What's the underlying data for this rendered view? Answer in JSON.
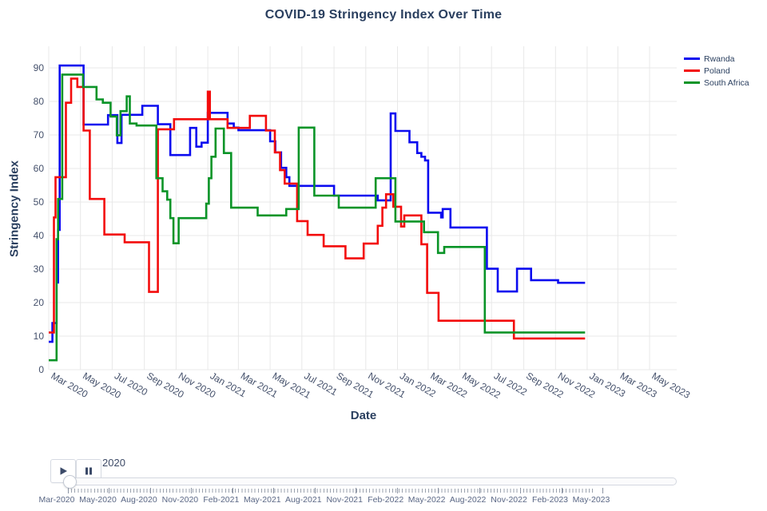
{
  "chart_data": {
    "type": "line",
    "line_shape": "step-after",
    "title": "COVID-19 Stringency Index Over Time",
    "xlabel": "Date",
    "ylabel": "Stringency Index",
    "ylim": [
      0,
      95
    ],
    "grid": true,
    "legend_position": "top-right",
    "y_ticks": [
      0,
      10,
      20,
      30,
      40,
      50,
      60,
      70,
      80,
      90
    ],
    "x_ticks": [
      {
        "date": "2020-03-01",
        "label": "Mar 2020"
      },
      {
        "date": "2020-05-01",
        "label": "May 2020"
      },
      {
        "date": "2020-07-01",
        "label": "Jul 2020"
      },
      {
        "date": "2020-09-01",
        "label": "Sep 2020"
      },
      {
        "date": "2020-11-01",
        "label": "Nov 2020"
      },
      {
        "date": "2021-01-01",
        "label": "Jan 2021"
      },
      {
        "date": "2021-03-01",
        "label": "Mar 2021"
      },
      {
        "date": "2021-05-01",
        "label": "May 2021"
      },
      {
        "date": "2021-07-01",
        "label": "Jul 2021"
      },
      {
        "date": "2021-09-01",
        "label": "Sep 2021"
      },
      {
        "date": "2021-11-01",
        "label": "Nov 2021"
      },
      {
        "date": "2022-01-01",
        "label": "Jan 2022"
      },
      {
        "date": "2022-03-01",
        "label": "Mar 2022"
      },
      {
        "date": "2022-05-01",
        "label": "May 2022"
      },
      {
        "date": "2022-07-01",
        "label": "Jul 2022"
      },
      {
        "date": "2022-09-01",
        "label": "Sep 2022"
      },
      {
        "date": "2022-11-01",
        "label": "Nov 2022"
      },
      {
        "date": "2023-01-01",
        "label": "Jan 2023"
      },
      {
        "date": "2023-03-01",
        "label": "Mar 2023"
      },
      {
        "date": "2023-05-01",
        "label": "May 2023"
      }
    ],
    "x_end_of_data": "2022-12-28",
    "series": [
      {
        "name": "Rwanda",
        "color": "#0b0bef",
        "points": [
          [
            "2020-03-01",
            8.3
          ],
          [
            "2020-03-08",
            13.9
          ],
          [
            "2020-03-16",
            26.0
          ],
          [
            "2020-03-19",
            41.7
          ],
          [
            "2020-03-22",
            90.7
          ],
          [
            "2020-05-07",
            73.1
          ],
          [
            "2020-06-23",
            75.9
          ],
          [
            "2020-07-11",
            67.6
          ],
          [
            "2020-07-19",
            76.0
          ],
          [
            "2020-08-28",
            78.7
          ],
          [
            "2020-09-27",
            73.2
          ],
          [
            "2020-10-21",
            64.0
          ],
          [
            "2020-11-28",
            72.1
          ],
          [
            "2020-12-10",
            66.5
          ],
          [
            "2020-12-20",
            67.7
          ],
          [
            "2021-01-01",
            76.6
          ],
          [
            "2021-02-08",
            73.4
          ],
          [
            "2021-02-20",
            72.2
          ],
          [
            "2021-03-01",
            71.4
          ],
          [
            "2021-05-01",
            68.1
          ],
          [
            "2021-05-11",
            64.8
          ],
          [
            "2021-05-22",
            60.2
          ],
          [
            "2021-06-01",
            57.4
          ],
          [
            "2021-06-07",
            54.8
          ],
          [
            "2021-09-01",
            51.9
          ],
          [
            "2021-11-24",
            50.5
          ],
          [
            "2021-12-19",
            76.4
          ],
          [
            "2021-12-28",
            71.2
          ],
          [
            "2022-01-24",
            67.8
          ],
          [
            "2022-02-08",
            64.6
          ],
          [
            "2022-02-16",
            63.5
          ],
          [
            "2022-02-23",
            62.4
          ],
          [
            "2022-03-01",
            46.8
          ],
          [
            "2022-03-26",
            45.4
          ],
          [
            "2022-03-29",
            47.9
          ],
          [
            "2022-04-13",
            42.4
          ],
          [
            "2022-06-22",
            30.1
          ],
          [
            "2022-07-13",
            23.3
          ],
          [
            "2022-08-19",
            30.1
          ],
          [
            "2022-09-15",
            26.7
          ],
          [
            "2022-11-06",
            25.9
          ]
        ]
      },
      {
        "name": "Poland",
        "color": "#f30c0c",
        "points": [
          [
            "2020-03-01",
            11.1
          ],
          [
            "2020-03-11",
            45.4
          ],
          [
            "2020-03-14",
            57.4
          ],
          [
            "2020-04-03",
            79.6
          ],
          [
            "2020-04-13",
            86.8
          ],
          [
            "2020-04-25",
            84.3
          ],
          [
            "2020-05-07",
            71.3
          ],
          [
            "2020-05-19",
            50.9
          ],
          [
            "2020-06-16",
            40.3
          ],
          [
            "2020-07-25",
            38.0
          ],
          [
            "2020-09-10",
            23.2
          ],
          [
            "2020-09-27",
            71.7
          ],
          [
            "2020-10-28",
            74.7
          ],
          [
            "2021-01-01",
            82.9
          ],
          [
            "2021-01-05",
            74.7
          ],
          [
            "2021-02-08",
            72.1
          ],
          [
            "2021-03-23",
            75.7
          ],
          [
            "2021-04-23",
            71.3
          ],
          [
            "2021-05-10",
            64.8
          ],
          [
            "2021-05-20",
            59.5
          ],
          [
            "2021-05-29",
            55.5
          ],
          [
            "2021-06-22",
            44.3
          ],
          [
            "2021-07-12",
            40.2
          ],
          [
            "2021-08-12",
            36.8
          ],
          [
            "2021-09-23",
            33.2
          ],
          [
            "2021-10-28",
            37.6
          ],
          [
            "2021-11-24",
            42.9
          ],
          [
            "2021-12-03",
            48.3
          ],
          [
            "2021-12-10",
            52.3
          ],
          [
            "2021-12-24",
            48.6
          ],
          [
            "2022-01-08",
            42.7
          ],
          [
            "2022-01-14",
            46.0
          ],
          [
            "2022-02-16",
            37.4
          ],
          [
            "2022-02-27",
            22.9
          ],
          [
            "2022-03-21",
            14.6
          ],
          [
            "2022-08-13",
            9.3
          ]
        ]
      },
      {
        "name": "South Africa",
        "color": "#0a9427",
        "points": [
          [
            "2020-03-01",
            2.8
          ],
          [
            "2020-03-16",
            38.9
          ],
          [
            "2020-03-19",
            50.9
          ],
          [
            "2020-03-27",
            88.0
          ],
          [
            "2020-05-06",
            84.3
          ],
          [
            "2020-06-01",
            80.6
          ],
          [
            "2020-06-13",
            79.6
          ],
          [
            "2020-06-28",
            75.5
          ],
          [
            "2020-07-10",
            69.9
          ],
          [
            "2020-07-17",
            77.1
          ],
          [
            "2020-07-29",
            81.5
          ],
          [
            "2020-08-04",
            73.4
          ],
          [
            "2020-08-17",
            72.8
          ],
          [
            "2020-09-24",
            57.1
          ],
          [
            "2020-10-06",
            53.2
          ],
          [
            "2020-10-15",
            50.7
          ],
          [
            "2020-10-21",
            45.2
          ],
          [
            "2020-10-27",
            37.7
          ],
          [
            "2020-11-06",
            45.2
          ],
          [
            "2020-12-29",
            49.5
          ],
          [
            "2021-01-03",
            57.1
          ],
          [
            "2021-01-08",
            63.5
          ],
          [
            "2021-01-16",
            71.9
          ],
          [
            "2021-02-01",
            64.6
          ],
          [
            "2021-02-15",
            48.3
          ],
          [
            "2021-04-07",
            46.0
          ],
          [
            "2021-06-01",
            47.9
          ],
          [
            "2021-06-25",
            72.2
          ],
          [
            "2021-07-25",
            51.9
          ],
          [
            "2021-09-10",
            48.3
          ],
          [
            "2021-11-20",
            57.1
          ],
          [
            "2021-12-28",
            44.2
          ],
          [
            "2022-02-21",
            41.0
          ],
          [
            "2022-03-20",
            34.8
          ],
          [
            "2022-04-01",
            36.6
          ],
          [
            "2022-06-18",
            11.1
          ]
        ]
      }
    ]
  },
  "slider": {
    "current_value_label": "2020",
    "play_icon": "play-icon",
    "pause_icon": "pause-icon",
    "tick_labels": [
      "Mar-2020",
      "May-2020",
      "Aug-2020",
      "Nov-2020",
      "Feb-2021",
      "May-2021",
      "Aug-2021",
      "Nov-2021",
      "Feb-2022",
      "May-2022",
      "Aug-2022",
      "Nov-2022",
      "Feb-2023",
      "May-2023"
    ]
  },
  "style": {
    "title_color": "#2a3f5f",
    "tick_color": "#44506b",
    "grid_color": "#e8e8e8",
    "slider_label_color": "#5a6785"
  }
}
